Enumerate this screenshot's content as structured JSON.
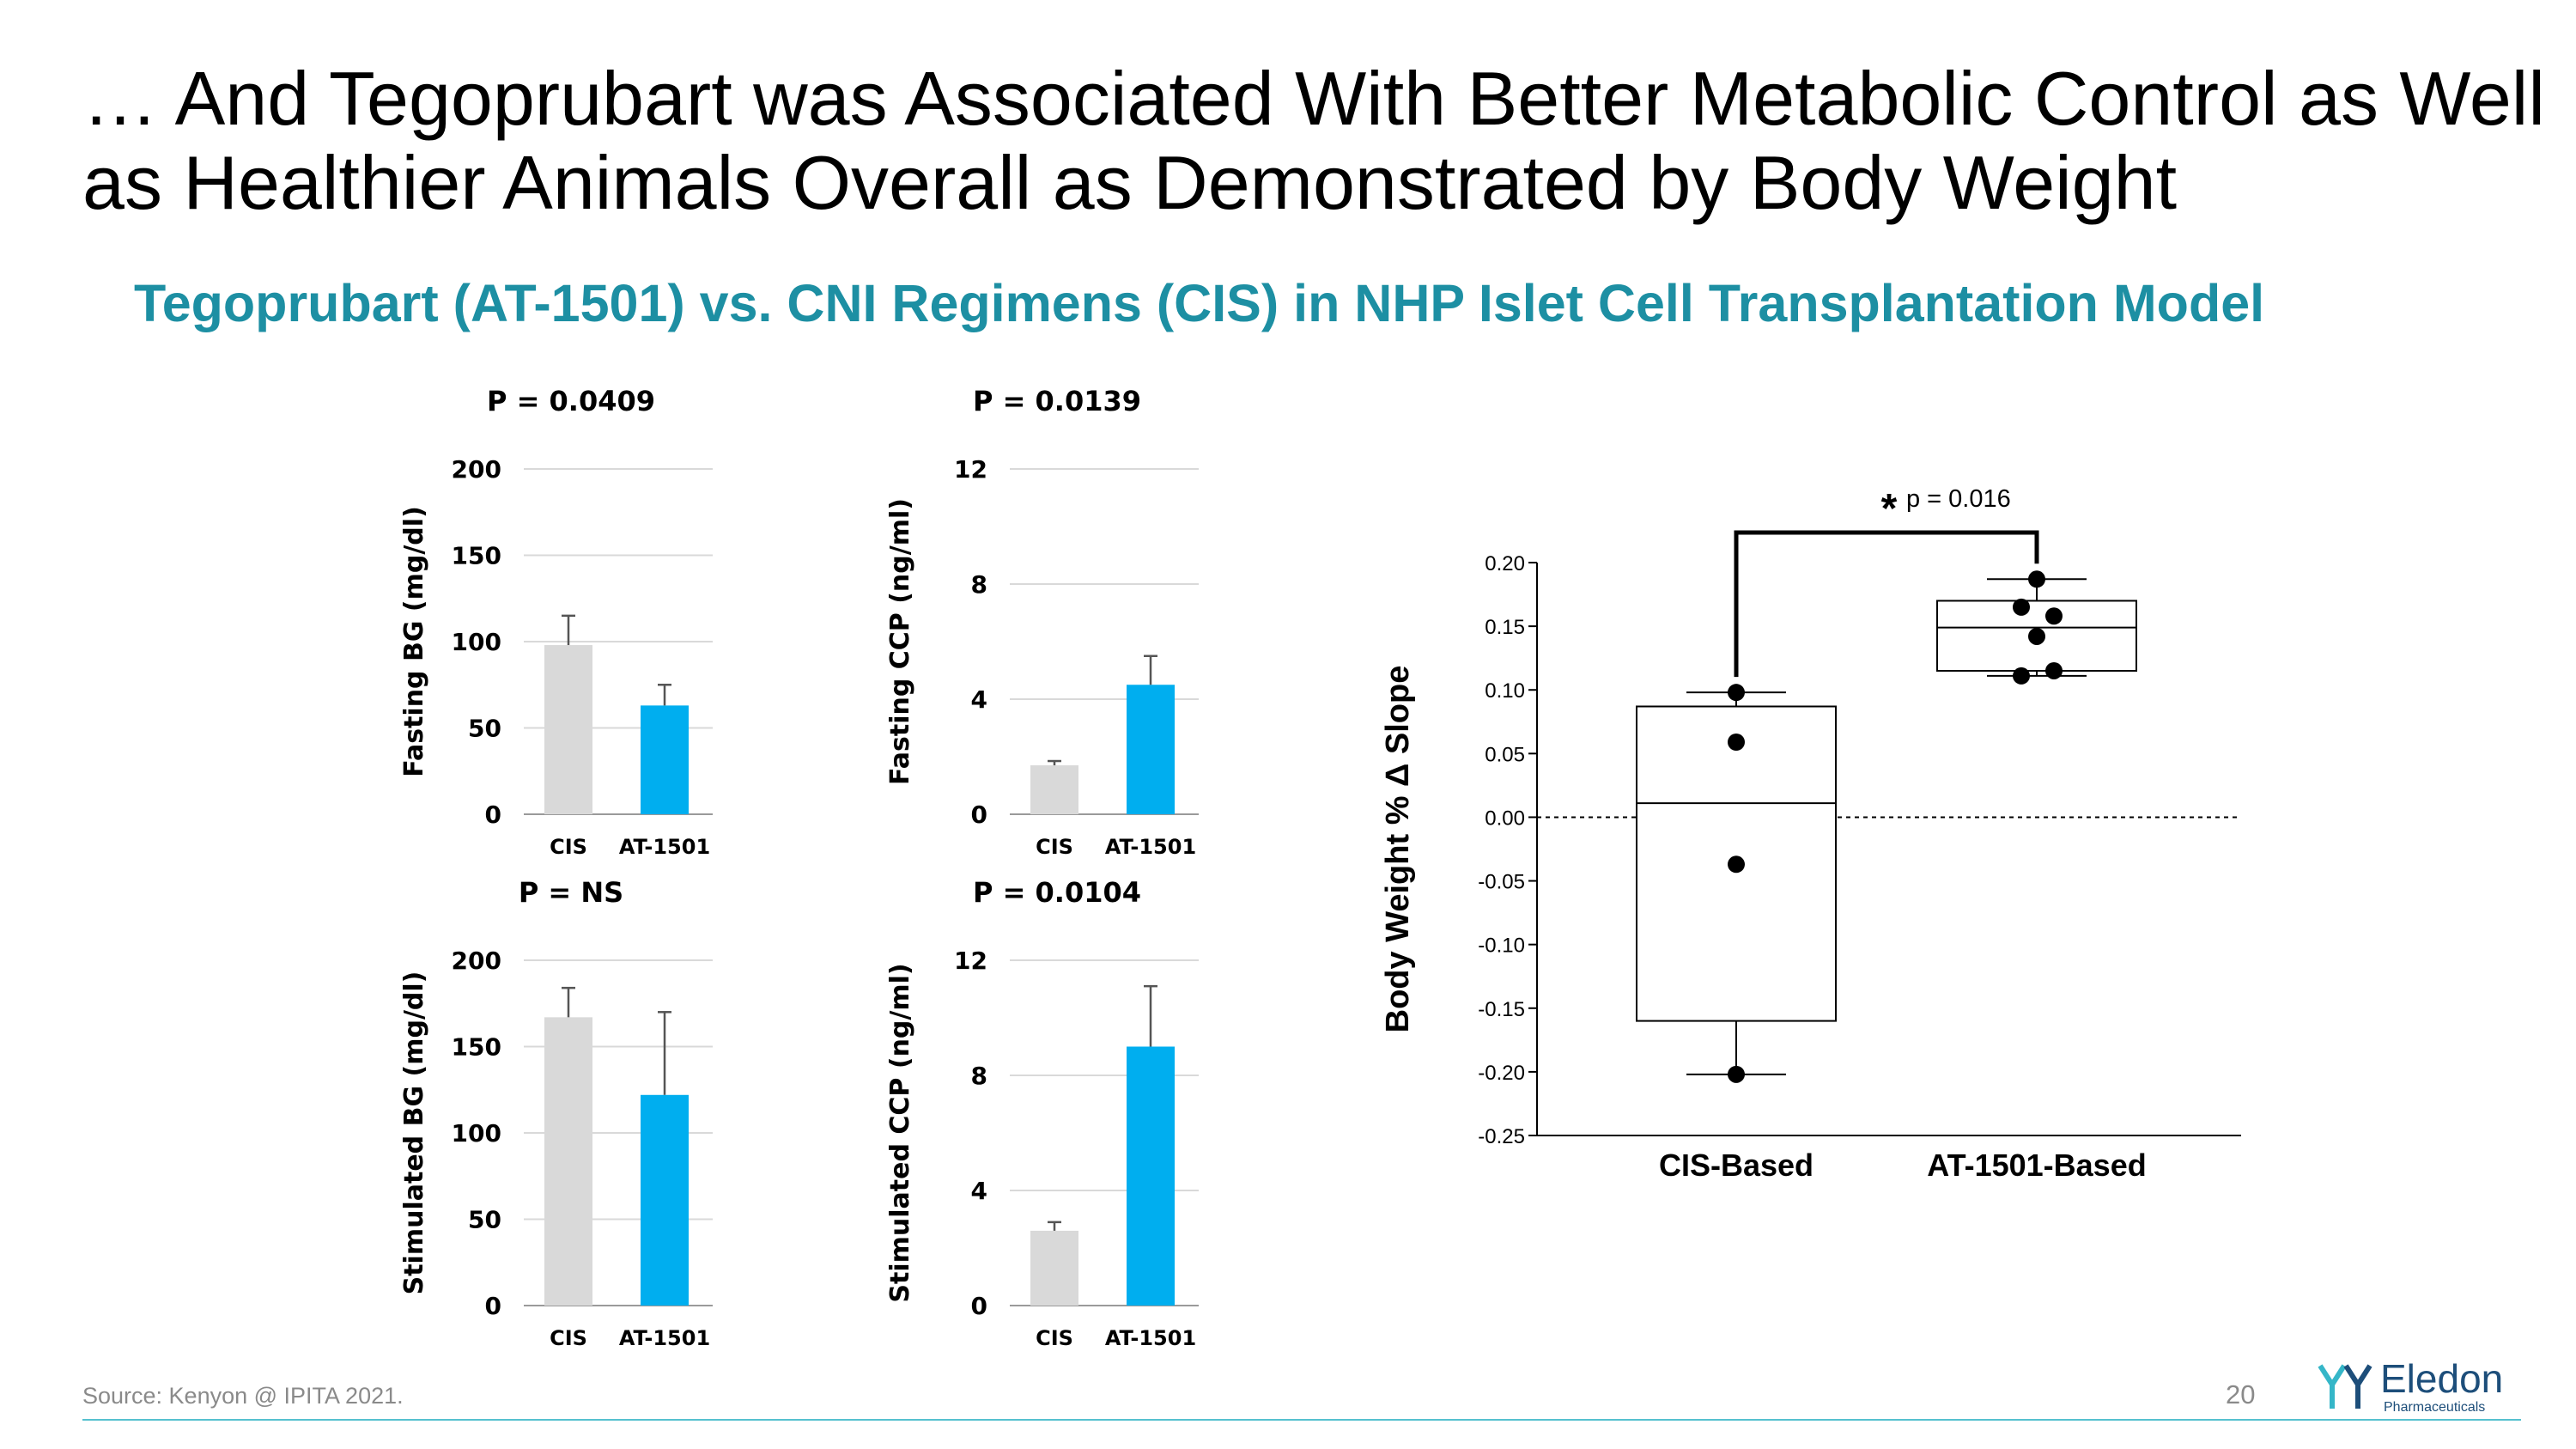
{
  "slide": {
    "title": "… And Tegoprubart was Associated With Better Metabolic Control as Well as Healthier Animals Overall as Demonstrated by Body Weight",
    "subtitle": "Tegoprubart (AT-1501) vs. CNI Regimens (CIS) in NHP Islet Cell Transplantation Model",
    "source": "Source: Kenyon @ IPITA 2021.",
    "page_number": "20",
    "logo_name": "Eledon",
    "logo_sub": "Pharmaceuticals"
  },
  "colors": {
    "cis": "#d9d9d9",
    "at1501": "#00aeef",
    "accent": "#1d8fa3",
    "grid": "#d9d9d9",
    "logo": "#1d4e7a",
    "footer_line": "#56c1cf"
  },
  "chart_data": [
    {
      "type": "bar",
      "title": "P = 0.0409",
      "ylabel": "Fasting BG (mg/dl)",
      "categories": [
        "CIS",
        "AT-1501"
      ],
      "values": [
        98,
        63
      ],
      "errors": [
        17,
        12
      ],
      "ylim": [
        0,
        200
      ],
      "yticks": [
        0,
        50,
        100,
        150,
        200
      ]
    },
    {
      "type": "bar",
      "title": "P = 0.0139",
      "ylabel": "Fasting CCP (ng/ml)",
      "categories": [
        "CIS",
        "AT-1501"
      ],
      "values": [
        1.7,
        4.5
      ],
      "errors": [
        0.15,
        1.0
      ],
      "ylim": [
        0,
        12
      ],
      "yticks": [
        0,
        4,
        8,
        12
      ]
    },
    {
      "type": "bar",
      "title": "P = NS",
      "ylabel": "Stimulated BG (mg/dl)",
      "categories": [
        "CIS",
        "AT-1501"
      ],
      "values": [
        167,
        122
      ],
      "errors": [
        17,
        48
      ],
      "ylim": [
        0,
        200
      ],
      "yticks": [
        0,
        50,
        100,
        150,
        200
      ]
    },
    {
      "type": "bar",
      "title": "P = 0.0104",
      "ylabel": "Stimulated CCP (ng/ml)",
      "categories": [
        "CIS",
        "AT-1501"
      ],
      "values": [
        2.6,
        9.0
      ],
      "errors": [
        0.3,
        2.1
      ],
      "ylim": [
        0,
        12
      ],
      "yticks": [
        0,
        4,
        8,
        12
      ]
    },
    {
      "type": "box",
      "ylabel": "Body Weight % Δ Slope",
      "categories": [
        "CIS-Based",
        "AT-1501-Based"
      ],
      "ylim": [
        -0.25,
        0.2
      ],
      "yticks": [
        "0.20",
        "0.15",
        "0.10",
        "0.05",
        "0.00",
        "-0.05",
        "-0.10",
        "-0.15",
        "-0.20",
        "-0.25"
      ],
      "reference_line": 0.0,
      "significance": {
        "star": "*",
        "label": "p = 0.016"
      },
      "groups": [
        {
          "name": "CIS-Based",
          "whisker_low": -0.202,
          "q1": -0.16,
          "median": 0.011,
          "q3": 0.087,
          "whisker_high": 0.098,
          "points": [
            0.098,
            0.059,
            -0.037,
            -0.202
          ]
        },
        {
          "name": "AT-1501-Based",
          "whisker_low": 0.111,
          "q1": 0.115,
          "median": 0.149,
          "q3": 0.17,
          "whisker_high": 0.187,
          "points": [
            0.187,
            0.165,
            0.158,
            0.142,
            0.115,
            0.111
          ]
        }
      ]
    }
  ]
}
